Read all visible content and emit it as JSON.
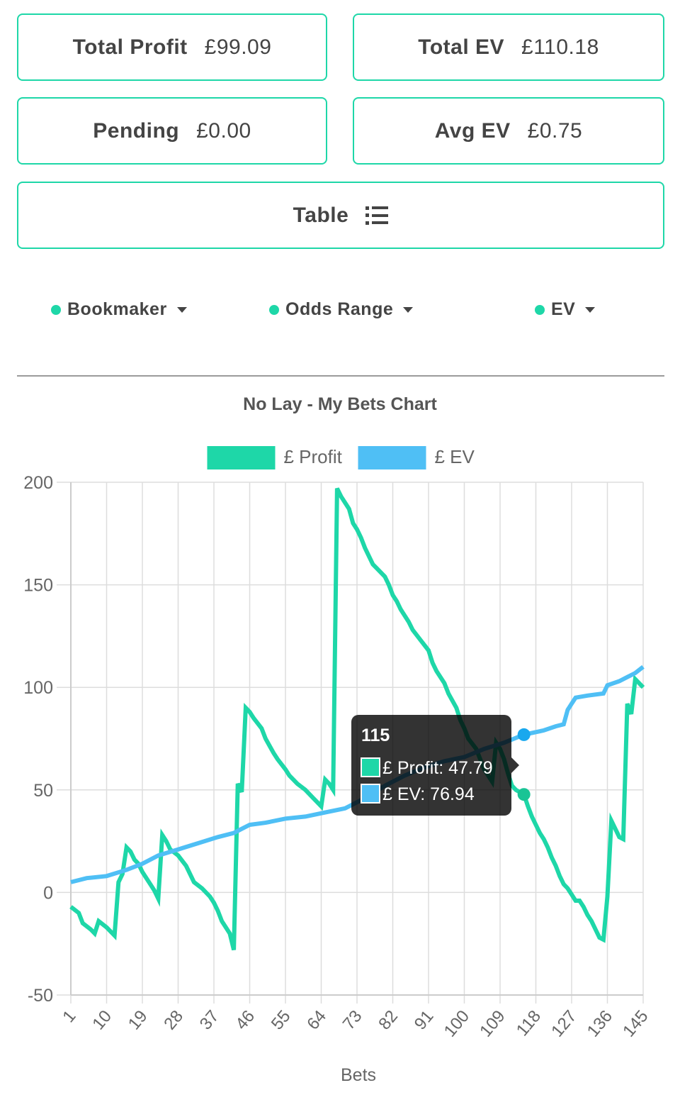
{
  "summary": {
    "total_profit_label": "Total Profit",
    "total_profit_value": "£99.09",
    "total_ev_label": "Total EV",
    "total_ev_value": "£110.18",
    "pending_label": "Pending",
    "pending_value": "£0.00",
    "avg_ev_label": "Avg EV",
    "avg_ev_value": "£0.75",
    "table_label": "Table"
  },
  "filters": [
    {
      "label": "Bookmaker"
    },
    {
      "label": "Odds Range"
    },
    {
      "label": "EV"
    }
  ],
  "colors": {
    "accent": "#1ed7a8",
    "profit": "#1ed7a8",
    "ev": "#4fbff5",
    "text": "#444444"
  },
  "chart_data": {
    "type": "line",
    "title": "No Lay - My Bets Chart",
    "xlabel": "Bets",
    "ylabel": "",
    "ylim": [
      -50,
      200
    ],
    "xlim": [
      1,
      145
    ],
    "x_ticks": [
      1,
      10,
      19,
      28,
      37,
      46,
      55,
      64,
      73,
      82,
      91,
      100,
      109,
      118,
      127,
      136,
      145
    ],
    "y_ticks": [
      -50,
      0,
      50,
      100,
      150,
      200
    ],
    "grid": true,
    "legend": "top-center",
    "series": [
      {
        "name": "£ Profit",
        "color": "#1ed7a8",
        "points": [
          [
            1,
            -7
          ],
          [
            3,
            -10
          ],
          [
            4,
            -15
          ],
          [
            6,
            -18
          ],
          [
            7,
            -20
          ],
          [
            8,
            -14
          ],
          [
            10,
            -17
          ],
          [
            12,
            -21
          ],
          [
            13,
            5
          ],
          [
            14,
            9
          ],
          [
            15,
            22
          ],
          [
            16,
            20
          ],
          [
            17,
            16
          ],
          [
            18,
            14
          ],
          [
            19,
            10
          ],
          [
            21,
            4
          ],
          [
            22,
            1
          ],
          [
            23,
            -3
          ],
          [
            24,
            28
          ],
          [
            25,
            25
          ],
          [
            26,
            21
          ],
          [
            28,
            18
          ],
          [
            30,
            13
          ],
          [
            32,
            5
          ],
          [
            34,
            2
          ],
          [
            36,
            -2
          ],
          [
            37,
            -5
          ],
          [
            38,
            -9
          ],
          [
            39,
            -14
          ],
          [
            41,
            -20
          ],
          [
            42,
            -28
          ],
          [
            43,
            53
          ],
          [
            44,
            49
          ],
          [
            45,
            90
          ],
          [
            46,
            88
          ],
          [
            47,
            85
          ],
          [
            49,
            80
          ],
          [
            50,
            75
          ],
          [
            52,
            68
          ],
          [
            53,
            65
          ],
          [
            55,
            60
          ],
          [
            56,
            57
          ],
          [
            58,
            53
          ],
          [
            60,
            50
          ],
          [
            62,
            46
          ],
          [
            64,
            42
          ],
          [
            65,
            55
          ],
          [
            66,
            53
          ],
          [
            67,
            50
          ],
          [
            68,
            197
          ],
          [
            69,
            193
          ],
          [
            70,
            190
          ],
          [
            71,
            187
          ],
          [
            72,
            180
          ],
          [
            73,
            177
          ],
          [
            74,
            173
          ],
          [
            75,
            168
          ],
          [
            77,
            160
          ],
          [
            78,
            158
          ],
          [
            80,
            154
          ],
          [
            81,
            150
          ],
          [
            82,
            145
          ],
          [
            83,
            142
          ],
          [
            84,
            138
          ],
          [
            86,
            132
          ],
          [
            87,
            128
          ],
          [
            89,
            123
          ],
          [
            91,
            118
          ],
          [
            92,
            112
          ],
          [
            93,
            108
          ],
          [
            95,
            102
          ],
          [
            96,
            97
          ],
          [
            98,
            90
          ],
          [
            99,
            84
          ],
          [
            100,
            80
          ],
          [
            101,
            75
          ],
          [
            103,
            70
          ],
          [
            104,
            65
          ],
          [
            105,
            60
          ],
          [
            107,
            54
          ],
          [
            108,
            73
          ],
          [
            109,
            70
          ],
          [
            110,
            65
          ],
          [
            111,
            58
          ],
          [
            112,
            52
          ],
          [
            113,
            50
          ],
          [
            115,
            47.79
          ],
          [
            116,
            42
          ],
          [
            117,
            37
          ],
          [
            118,
            33
          ],
          [
            119,
            29
          ],
          [
            120,
            26
          ],
          [
            121,
            22
          ],
          [
            122,
            17
          ],
          [
            123,
            13
          ],
          [
            124,
            8
          ],
          [
            125,
            4
          ],
          [
            126,
            2
          ],
          [
            127,
            -1
          ],
          [
            128,
            -4
          ],
          [
            129,
            -4
          ],
          [
            130,
            -7
          ],
          [
            131,
            -11
          ],
          [
            132,
            -14
          ],
          [
            133,
            -18
          ],
          [
            134,
            -22
          ],
          [
            135,
            -23
          ],
          [
            136,
            -2
          ],
          [
            137,
            35
          ],
          [
            138,
            31
          ],
          [
            139,
            27
          ],
          [
            140,
            26
          ],
          [
            141,
            92
          ],
          [
            142,
            87
          ],
          [
            143,
            104
          ],
          [
            145,
            100
          ]
        ]
      },
      {
        "name": "£ EV",
        "color": "#4fbff5",
        "points": [
          [
            1,
            5
          ],
          [
            5,
            7
          ],
          [
            10,
            8
          ],
          [
            15,
            11
          ],
          [
            19,
            14
          ],
          [
            23,
            18
          ],
          [
            28,
            21
          ],
          [
            33,
            24
          ],
          [
            38,
            27
          ],
          [
            42,
            29
          ],
          [
            44,
            31
          ],
          [
            46,
            33
          ],
          [
            50,
            34
          ],
          [
            55,
            36
          ],
          [
            60,
            37
          ],
          [
            65,
            39
          ],
          [
            70,
            41
          ],
          [
            75,
            46
          ],
          [
            80,
            52
          ],
          [
            85,
            57
          ],
          [
            90,
            61
          ],
          [
            95,
            64
          ],
          [
            100,
            66
          ],
          [
            105,
            70
          ],
          [
            110,
            73
          ],
          [
            115,
            76.94
          ],
          [
            120,
            79
          ],
          [
            123,
            81
          ],
          [
            125,
            82
          ],
          [
            126,
            89
          ],
          [
            127,
            92
          ],
          [
            128,
            95
          ],
          [
            131,
            96
          ],
          [
            135,
            97
          ],
          [
            136,
            101
          ],
          [
            139,
            103
          ],
          [
            141,
            105
          ],
          [
            143,
            107
          ],
          [
            145,
            110
          ]
        ]
      }
    ],
    "tooltip": {
      "x": 115,
      "title": "115",
      "lines": [
        {
          "label": "£ Profit: 47.79",
          "color": "#1ed7a8"
        },
        {
          "label": "£ EV: 76.94",
          "color": "#4fbff5"
        }
      ]
    }
  }
}
